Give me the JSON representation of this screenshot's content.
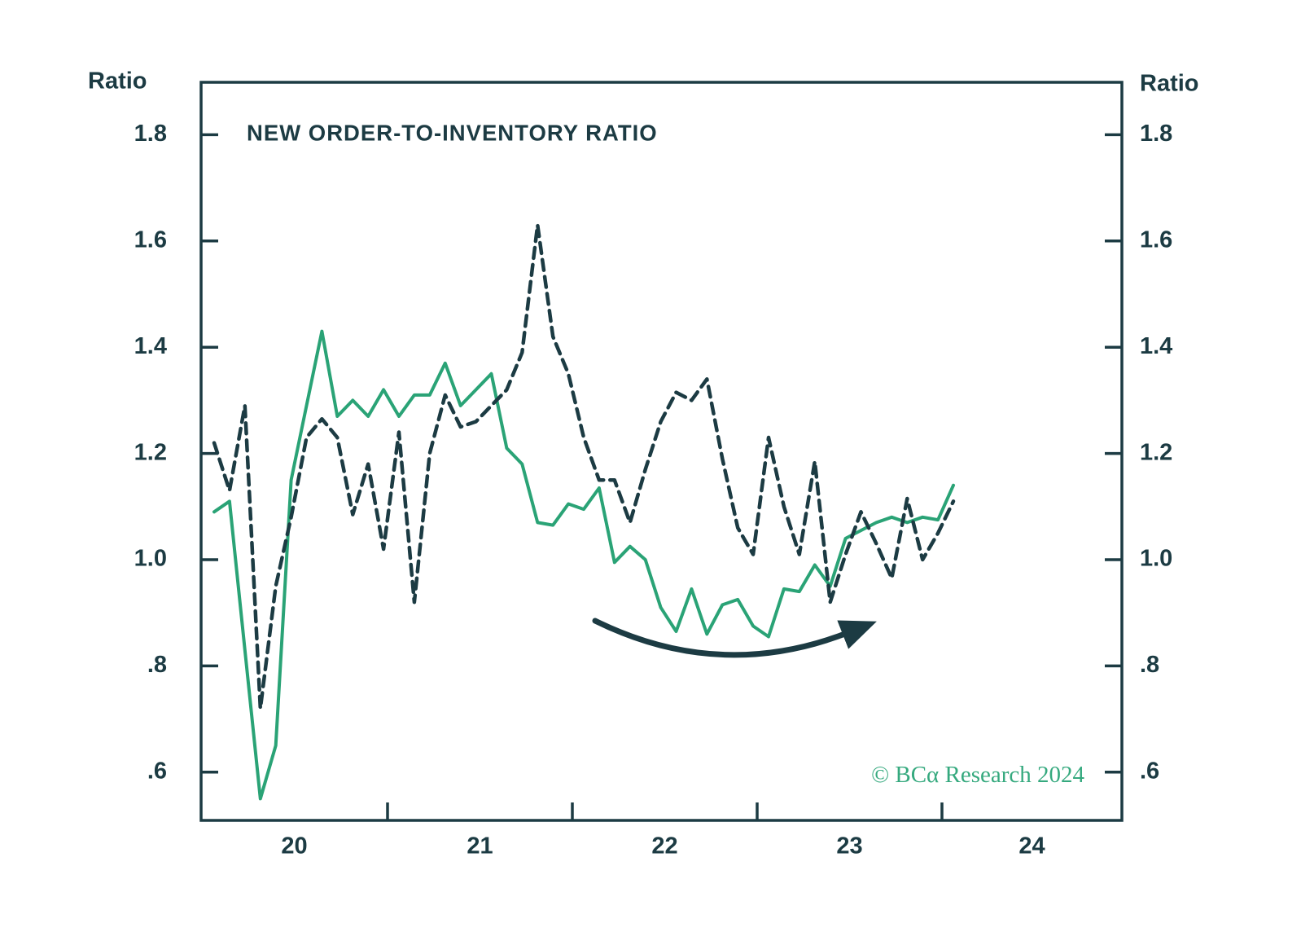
{
  "chart": {
    "title": "NEW ORDER-TO-INVENTORY RATIO",
    "y_axis_label_left": "Ratio",
    "y_axis_label_right": "Ratio",
    "credit": "© BCα Research 2024",
    "colors": {
      "background": "#ffffff",
      "frame_and_text": "#1c3b43",
      "solid_line": "#2aa376",
      "dashed_line": "#1c3b43",
      "arrow": "#1c3b43",
      "credit_text": "#35a97e"
    }
  },
  "chart_data": {
    "type": "line",
    "title": "NEW ORDER-TO-INVENTORY RATIO",
    "xlabel": "",
    "ylabel": "Ratio",
    "x_unit": "month",
    "x_start_month": "2020-01",
    "x_end_month": "2024-01",
    "x_tick_labels": [
      "20",
      "21",
      "22",
      "23",
      "24"
    ],
    "y_tick_labels": [
      "1.8",
      "1.6",
      "1.4",
      "1.2",
      "1.0",
      ".8",
      ".6"
    ],
    "y_tick_values": [
      1.8,
      1.6,
      1.4,
      1.2,
      1.0,
      0.8,
      0.6
    ],
    "ylim": [
      0.51,
      1.9
    ],
    "grid": false,
    "legend": "none",
    "series": [
      {
        "name": "new-order-to-inventory-ratio-solid",
        "style": "solid",
        "color": "#2aa376",
        "values": [
          1.09,
          1.11,
          0.83,
          0.55,
          0.65,
          1.15,
          1.29,
          1.43,
          1.27,
          1.3,
          1.27,
          1.32,
          1.27,
          1.31,
          1.31,
          1.37,
          1.29,
          1.32,
          1.35,
          1.21,
          1.18,
          1.07,
          1.065,
          1.105,
          1.095,
          1.135,
          0.995,
          1.025,
          1.0,
          0.91,
          0.865,
          0.945,
          0.86,
          0.915,
          0.925,
          0.875,
          0.855,
          0.945,
          0.94,
          0.99,
          0.95,
          1.04,
          1.055,
          1.07,
          1.08,
          1.07,
          1.08,
          1.075,
          1.14
        ]
      },
      {
        "name": "new-order-to-inventory-ratio-dashed",
        "style": "dashed",
        "color": "#1c3b43",
        "values": [
          1.22,
          1.13,
          1.29,
          0.72,
          0.95,
          1.08,
          1.23,
          1.265,
          1.23,
          1.085,
          1.18,
          1.02,
          1.24,
          0.92,
          1.2,
          1.31,
          1.25,
          1.26,
          1.29,
          1.32,
          1.39,
          1.63,
          1.42,
          1.35,
          1.23,
          1.15,
          1.15,
          1.07,
          1.17,
          1.26,
          1.315,
          1.3,
          1.34,
          1.19,
          1.06,
          1.01,
          1.23,
          1.1,
          1.01,
          1.185,
          0.92,
          1.01,
          1.09,
          1.03,
          0.965,
          1.115,
          1.0,
          1.05,
          1.11
        ]
      }
    ],
    "annotations": [
      {
        "type": "curved-arrow",
        "description": "Thick curved swoosh arrow under the 2022-2023 trough pointing up to the right (recovery)."
      }
    ]
  }
}
